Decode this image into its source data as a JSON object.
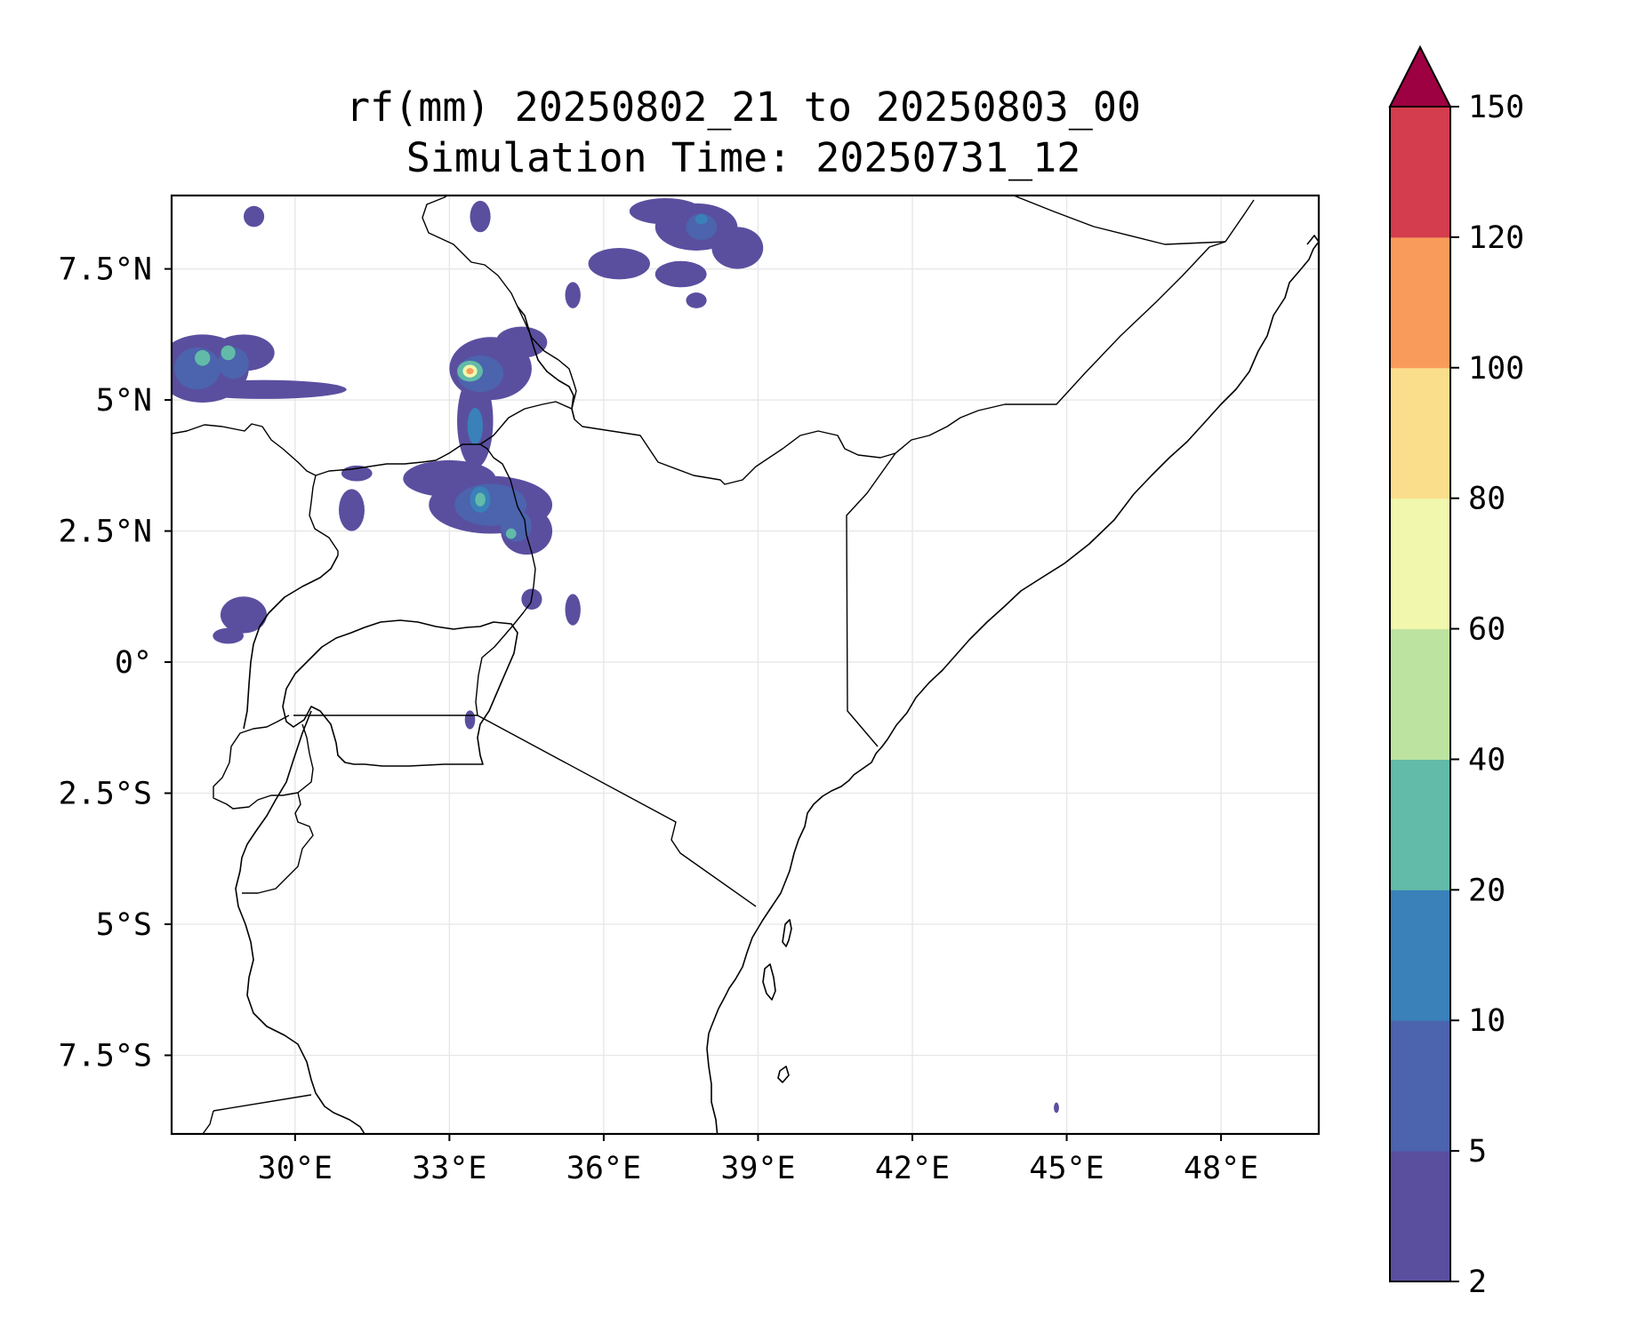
{
  "map": {
    "title_line1": "rf(mm) 20250802_21 to 20250803_00",
    "title_line2": "Simulation Time: 20250731_12",
    "extent": {
      "lon_min": 27.6,
      "lon_max": 49.9,
      "lat_min": -9.0,
      "lat_max": 8.9
    },
    "x_ticks": [
      {
        "value": 30,
        "label": "30°E"
      },
      {
        "value": 33,
        "label": "33°E"
      },
      {
        "value": 36,
        "label": "36°E"
      },
      {
        "value": 39,
        "label": "39°E"
      },
      {
        "value": 42,
        "label": "42°E"
      },
      {
        "value": 45,
        "label": "45°E"
      },
      {
        "value": 48,
        "label": "48°E"
      }
    ],
    "y_ticks": [
      {
        "value": 7.5,
        "label": "7.5°N"
      },
      {
        "value": 5,
        "label": "5°N"
      },
      {
        "value": 2.5,
        "label": "2.5°N"
      },
      {
        "value": 0,
        "label": "0°"
      },
      {
        "value": -2.5,
        "label": "2.5°S"
      },
      {
        "value": -5,
        "label": "5°S"
      },
      {
        "value": -7.5,
        "label": "7.5°S"
      }
    ],
    "gridlines": true
  },
  "colorbar": {
    "levels": [
      "2",
      "5",
      "10",
      "20",
      "40",
      "60",
      "80",
      "100",
      "120",
      "150"
    ],
    "colors": [
      "#5a4f9f",
      "#4c63ad",
      "#3a80b9",
      "#62bba8",
      "#bde3a0",
      "#f1f7ad",
      "#fbde8c",
      "#f99c5b",
      "#d33d4d"
    ],
    "extend_color": "#9e0142",
    "extend": "max"
  },
  "rain_areas": [
    {
      "lon": 28.2,
      "lat": 5.6,
      "rx": 0.9,
      "ry": 0.65,
      "level": 0
    },
    {
      "lon": 29.4,
      "lat": 5.2,
      "rx": 1.6,
      "ry": 0.18,
      "level": 0
    },
    {
      "lon": 29.0,
      "lat": 5.9,
      "rx": 0.6,
      "ry": 0.35,
      "level": 0
    },
    {
      "lon": 28.1,
      "lat": 5.6,
      "rx": 0.45,
      "ry": 0.4,
      "level": 1
    },
    {
      "lon": 28.8,
      "lat": 5.7,
      "rx": 0.3,
      "ry": 0.3,
      "level": 1
    },
    {
      "lon": 28.2,
      "lat": 5.8,
      "rx": 0.15,
      "ry": 0.15,
      "level": 3
    },
    {
      "lon": 28.7,
      "lat": 5.9,
      "rx": 0.14,
      "ry": 0.14,
      "level": 3
    },
    {
      "lon": 33.8,
      "lat": 5.6,
      "rx": 0.8,
      "ry": 0.6,
      "level": 0
    },
    {
      "lon": 33.5,
      "lat": 4.6,
      "rx": 0.35,
      "ry": 0.9,
      "level": 0
    },
    {
      "lon": 34.4,
      "lat": 6.1,
      "rx": 0.5,
      "ry": 0.3,
      "level": 0
    },
    {
      "lon": 33.6,
      "lat": 5.5,
      "rx": 0.45,
      "ry": 0.35,
      "level": 1
    },
    {
      "lon": 33.5,
      "lat": 4.5,
      "rx": 0.15,
      "ry": 0.35,
      "level": 2
    },
    {
      "lon": 33.4,
      "lat": 5.55,
      "rx": 0.25,
      "ry": 0.2,
      "level": 3
    },
    {
      "lon": 33.4,
      "lat": 5.55,
      "rx": 0.14,
      "ry": 0.12,
      "level": 5
    },
    {
      "lon": 33.4,
      "lat": 5.55,
      "rx": 0.07,
      "ry": 0.06,
      "level": 7
    },
    {
      "lon": 33.8,
      "lat": 3.0,
      "rx": 1.2,
      "ry": 0.55,
      "level": 0
    },
    {
      "lon": 33.0,
      "lat": 3.5,
      "rx": 0.9,
      "ry": 0.35,
      "level": 0
    },
    {
      "lon": 34.5,
      "lat": 2.5,
      "rx": 0.5,
      "ry": 0.45,
      "level": 0
    },
    {
      "lon": 31.1,
      "lat": 2.9,
      "rx": 0.25,
      "ry": 0.4,
      "level": 0
    },
    {
      "lon": 31.2,
      "lat": 3.6,
      "rx": 0.3,
      "ry": 0.15,
      "level": 0
    },
    {
      "lon": 33.8,
      "lat": 3.0,
      "rx": 0.7,
      "ry": 0.4,
      "level": 1
    },
    {
      "lon": 34.3,
      "lat": 2.6,
      "rx": 0.3,
      "ry": 0.3,
      "level": 1
    },
    {
      "lon": 33.6,
      "lat": 3.1,
      "rx": 0.2,
      "ry": 0.25,
      "level": 2
    },
    {
      "lon": 33.6,
      "lat": 3.1,
      "rx": 0.1,
      "ry": 0.13,
      "level": 3
    },
    {
      "lon": 34.2,
      "lat": 2.45,
      "rx": 0.1,
      "ry": 0.1,
      "level": 3
    },
    {
      "lon": 34.6,
      "lat": 1.2,
      "rx": 0.2,
      "ry": 0.2,
      "level": 0
    },
    {
      "lon": 35.4,
      "lat": 1.0,
      "rx": 0.15,
      "ry": 0.3,
      "level": 0
    },
    {
      "lon": 29.0,
      "lat": 0.9,
      "rx": 0.45,
      "ry": 0.35,
      "level": 0
    },
    {
      "lon": 28.7,
      "lat": 0.5,
      "rx": 0.3,
      "ry": 0.15,
      "level": 0
    },
    {
      "lon": 33.4,
      "lat": -1.1,
      "rx": 0.1,
      "ry": 0.18,
      "level": 0
    },
    {
      "lon": 37.8,
      "lat": 8.3,
      "rx": 0.8,
      "ry": 0.45,
      "level": 0
    },
    {
      "lon": 36.3,
      "lat": 7.6,
      "rx": 0.6,
      "ry": 0.3,
      "level": 0
    },
    {
      "lon": 37.5,
      "lat": 7.4,
      "rx": 0.5,
      "ry": 0.25,
      "level": 0
    },
    {
      "lon": 38.6,
      "lat": 7.9,
      "rx": 0.5,
      "ry": 0.4,
      "level": 0
    },
    {
      "lon": 37.2,
      "lat": 8.6,
      "rx": 0.7,
      "ry": 0.25,
      "level": 0
    },
    {
      "lon": 33.6,
      "lat": 8.5,
      "rx": 0.2,
      "ry": 0.3,
      "level": 0
    },
    {
      "lon": 29.2,
      "lat": 8.5,
      "rx": 0.2,
      "ry": 0.2,
      "level": 0
    },
    {
      "lon": 37.8,
      "lat": 6.9,
      "rx": 0.2,
      "ry": 0.15,
      "level": 0
    },
    {
      "lon": 35.4,
      "lat": 7.0,
      "rx": 0.15,
      "ry": 0.25,
      "level": 0
    },
    {
      "lon": 37.9,
      "lat": 8.3,
      "rx": 0.3,
      "ry": 0.25,
      "level": 1
    },
    {
      "lon": 37.9,
      "lat": 8.45,
      "rx": 0.12,
      "ry": 0.1,
      "level": 2
    },
    {
      "lon": 44.8,
      "lat": -8.5,
      "rx": 0.05,
      "ry": 0.1,
      "level": 0
    }
  ]
}
